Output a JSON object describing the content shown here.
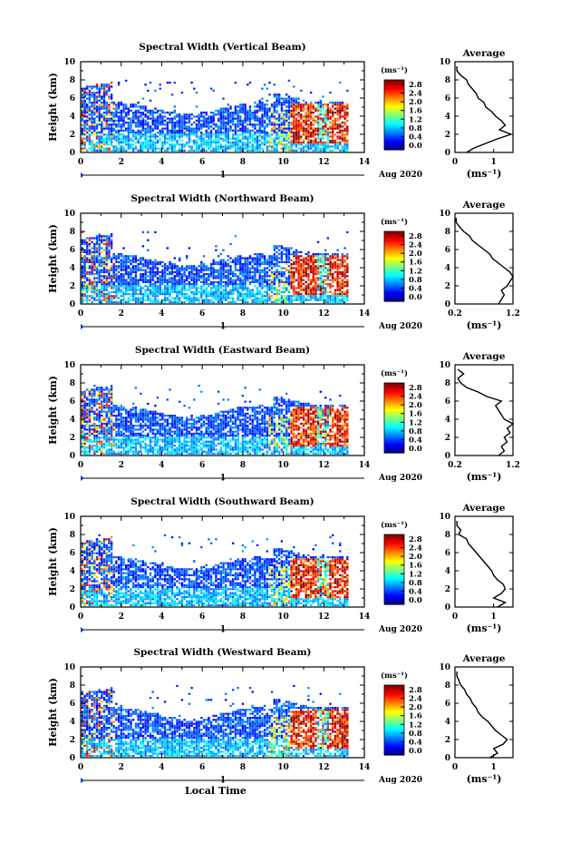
{
  "chart_data": [
    {
      "type": "heatmap",
      "title": "Spectral Width (Vertical Beam)",
      "beam": "vertical",
      "ylabel": "Height (km)",
      "ylim": [
        0,
        10
      ],
      "yticks": [
        0,
        2,
        4,
        6,
        8,
        10
      ],
      "xlim": [
        0,
        14
      ],
      "xticks": [
        0,
        2,
        4,
        6,
        8,
        10,
        12,
        14
      ],
      "date_label": "Aug 2020",
      "day_label": "1",
      "colorbar": {
        "unit": "(ms⁻¹)",
        "ticks": [
          "2.8",
          "2.4",
          "2.0",
          "1.6",
          "1.2",
          "0.8",
          "0.4",
          "0.0"
        ],
        "range": [
          0,
          2.8
        ]
      },
      "profile": {
        "title": "Average",
        "xlabel": "(ms⁻¹)",
        "xticks": [
          "0",
          "1"
        ],
        "xlim": [
          0,
          1.5
        ],
        "ylim": [
          0,
          10
        ],
        "yticks": [
          0,
          2,
          4,
          6,
          8,
          10
        ],
        "heights": [
          0,
          0.5,
          1,
          1.5,
          2,
          2.5,
          3,
          3.5,
          4,
          4.5,
          5,
          5.5,
          6,
          6.5,
          7,
          7.5,
          8,
          8.5,
          9,
          9.5
        ],
        "values": [
          0.3,
          0.5,
          0.8,
          1.1,
          1.45,
          1.15,
          1.3,
          1.2,
          1.05,
          0.95,
          0.8,
          0.75,
          0.6,
          0.55,
          0.45,
          0.35,
          0.3,
          0.15,
          0.05,
          0.05
        ]
      }
    },
    {
      "type": "heatmap",
      "title": "Spectral Width (Northward Beam)",
      "beam": "northward",
      "ylabel": "Height (km)",
      "ylim": [
        0,
        10
      ],
      "yticks": [
        0,
        2,
        4,
        6,
        8,
        10
      ],
      "xlim": [
        0,
        14
      ],
      "xticks": [
        0,
        2,
        4,
        6,
        8,
        10,
        12,
        14
      ],
      "date_label": "Aug 2020",
      "day_label": "1",
      "colorbar": {
        "unit": "(ms⁻¹)",
        "ticks": [
          "2.8",
          "2.4",
          "2.0",
          "1.6",
          "1.2",
          "0.8",
          "0.4",
          "0.0"
        ],
        "range": [
          0,
          2.8
        ]
      },
      "profile": {
        "title": "Average",
        "xlabel": "(ms⁻¹)",
        "xticks": [
          "0.2",
          "1.2"
        ],
        "xlim": [
          0.2,
          1.2
        ],
        "ylim": [
          0,
          10
        ],
        "yticks": [
          0,
          2,
          4,
          6,
          8,
          10
        ],
        "heights": [
          0,
          0.5,
          1,
          1.5,
          2,
          2.5,
          3,
          3.5,
          4,
          4.5,
          5,
          5.5,
          6,
          6.5,
          7,
          7.5,
          8,
          8.5,
          9,
          9.5
        ],
        "values": [
          0.95,
          1.0,
          1.05,
          1.0,
          1.1,
          1.15,
          1.2,
          1.15,
          1.05,
          0.95,
          0.85,
          0.8,
          0.7,
          0.6,
          0.5,
          0.45,
          0.35,
          0.28,
          0.22,
          0.22
        ]
      }
    },
    {
      "type": "heatmap",
      "title": "Spectral Width (Eastward Beam)",
      "beam": "eastward",
      "ylabel": "Height (km)",
      "ylim": [
        0,
        10
      ],
      "yticks": [
        0,
        2,
        4,
        6,
        8,
        10
      ],
      "xlim": [
        0,
        14
      ],
      "xticks": [
        0,
        2,
        4,
        6,
        8,
        10,
        12,
        14
      ],
      "date_label": "Aug 2020",
      "day_label": "1",
      "colorbar": {
        "unit": "(ms⁻¹)",
        "ticks": [
          "2.8",
          "2.4",
          "2.0",
          "1.6",
          "1.2",
          "0.8",
          "0.4",
          "0.0"
        ],
        "range": [
          0,
          2.8
        ]
      },
      "profile": {
        "title": "Average",
        "xlabel": "(ms⁻¹)",
        "xticks": [
          "0.2",
          "1.2"
        ],
        "xlim": [
          0.2,
          1.2
        ],
        "ylim": [
          0,
          10
        ],
        "yticks": [
          0,
          2,
          4,
          6,
          8,
          10
        ],
        "heights": [
          0,
          0.5,
          1,
          1.5,
          2,
          2.5,
          3,
          3.5,
          4,
          4.5,
          5,
          5.5,
          6,
          6.5,
          7,
          7.5,
          8,
          8.5,
          9,
          9.5
        ],
        "values": [
          0.95,
          1.05,
          1.0,
          1.1,
          1.05,
          1.15,
          1.1,
          1.2,
          1.05,
          1.0,
          0.95,
          0.9,
          1.0,
          0.75,
          0.6,
          0.4,
          0.3,
          0.25,
          0.35,
          0.25
        ]
      }
    },
    {
      "type": "heatmap",
      "title": "Spectral Width (Southward Beam)",
      "beam": "southward",
      "ylabel": "Height (km)",
      "ylim": [
        0,
        10
      ],
      "yticks": [
        0,
        2,
        4,
        6,
        8,
        10
      ],
      "xlim": [
        0,
        14
      ],
      "xticks": [
        0,
        2,
        4,
        6,
        8,
        10,
        12,
        14
      ],
      "date_label": "Aug 2020",
      "day_label": "1",
      "colorbar": {
        "unit": "(ms⁻¹)",
        "ticks": [
          "2.8",
          "2.4",
          "2.0",
          "1.6",
          "1.2",
          "0.8",
          "0.4",
          "0.0"
        ],
        "range": [
          0,
          2.8
        ]
      },
      "profile": {
        "title": "Average",
        "xlabel": "(ms⁻¹)",
        "xticks": [
          "0",
          "1"
        ],
        "xlim": [
          0,
          1.5
        ],
        "ylim": [
          0,
          10
        ],
        "yticks": [
          0,
          2,
          4,
          6,
          8,
          10
        ],
        "heights": [
          0,
          0.5,
          1,
          1.5,
          2,
          2.5,
          3,
          3.5,
          4,
          4.5,
          5,
          5.5,
          6,
          6.5,
          7,
          7.5,
          8,
          8.5,
          9,
          9.5
        ],
        "values": [
          1.1,
          1.3,
          1.0,
          1.2,
          1.3,
          1.25,
          1.1,
          1.0,
          0.95,
          0.85,
          0.75,
          0.65,
          0.55,
          0.45,
          0.35,
          0.3,
          0.1,
          0.15,
          0.05,
          0.05
        ]
      }
    },
    {
      "type": "heatmap",
      "title": "Spectral Width (Westward Beam)",
      "beam": "westward",
      "ylabel": "Height (km)",
      "ylim": [
        0,
        10
      ],
      "yticks": [
        0,
        2,
        4,
        6,
        8,
        10
      ],
      "xlim": [
        0,
        14
      ],
      "xticks": [
        0,
        2,
        4,
        6,
        8,
        10,
        12,
        14
      ],
      "date_label": "Aug 2020",
      "day_label": "1",
      "colorbar": {
        "unit": "(ms⁻¹)",
        "ticks": [
          "2.8",
          "2.4",
          "2.0",
          "1.6",
          "1.2",
          "0.8",
          "0.4",
          "0.0"
        ],
        "range": [
          0,
          2.8
        ]
      },
      "profile": {
        "title": "Average",
        "xlabel": "(ms⁻¹)",
        "xticks": [
          "0",
          "1"
        ],
        "xlim": [
          0,
          1.5
        ],
        "ylim": [
          0,
          10
        ],
        "yticks": [
          0,
          2,
          4,
          6,
          8,
          10
        ],
        "heights": [
          0,
          0.5,
          1,
          1.5,
          2,
          2.5,
          3,
          3.5,
          4,
          4.5,
          5,
          5.5,
          6,
          6.5,
          7,
          7.5,
          8,
          8.5,
          9,
          9.5
        ],
        "values": [
          0.9,
          1.1,
          1.0,
          1.25,
          1.35,
          1.2,
          1.05,
          0.95,
          0.85,
          0.7,
          0.6,
          0.55,
          0.45,
          0.4,
          0.3,
          0.25,
          0.15,
          0.1,
          0.05,
          0.05
        ]
      }
    }
  ],
  "xlabel_bottom": "Local Time",
  "colors": {
    "axis": "#000000",
    "text": "#000000",
    "day_marker": "#1a3fbf"
  }
}
